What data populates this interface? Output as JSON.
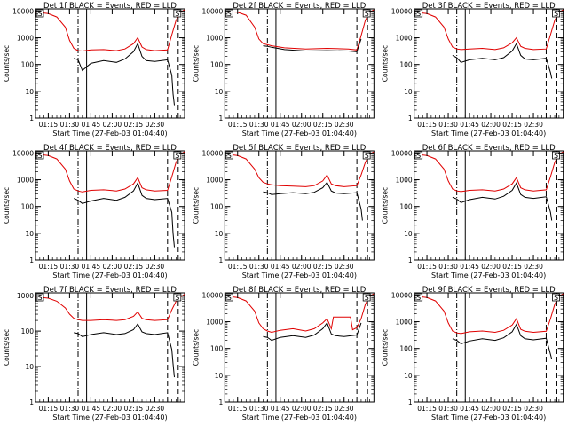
{
  "figure": {
    "xlabel": "Start Time (27-Feb-03 01:04:40)",
    "ylabel": "Counts/sec",
    "xticks": [
      "01:15",
      "01:30",
      "01:45",
      "02:00",
      "02:15",
      "02:30"
    ],
    "yticks": [
      "1",
      "10",
      "100",
      "1000",
      "10000"
    ]
  },
  "chart_data": [
    {
      "type": "line",
      "title": "Det 1f BLACK = Events, RED = LLD",
      "marker_left": "S",
      "marker_right": "S",
      "xlabel": "Start Time (27-Feb-03 01:04:40)",
      "ylabel": "Counts/sec",
      "yscale": "log",
      "ylim": [
        1,
        12000
      ],
      "xlim": [
        1,
        36
      ],
      "vlines": [
        {
          "x": 11,
          "style": "dashdot"
        },
        {
          "x": 13,
          "style": "solid"
        },
        {
          "x": 32,
          "style": "dashed"
        },
        {
          "x": 34.5,
          "style": "dashed"
        }
      ],
      "series": [
        {
          "name": "LLD",
          "color": "red",
          "x": [
            1,
            2,
            4,
            6,
            8,
            9,
            10,
            11,
            12,
            14,
            17,
            20,
            22,
            24,
            25,
            26,
            27,
            29,
            32,
            33,
            34,
            35,
            36
          ],
          "values": [
            9000,
            8800,
            8000,
            6000,
            2500,
            800,
            400,
            330,
            320,
            350,
            360,
            330,
            380,
            600,
            1000,
            450,
            360,
            330,
            350,
            1300,
            4500,
            9000,
            11000
          ]
        },
        {
          "name": "Events",
          "color": "black",
          "x": [
            10,
            11,
            12,
            14,
            17,
            20,
            22,
            24,
            25,
            26,
            27,
            29,
            32,
            33,
            33.3,
            33.6
          ],
          "values": [
            170,
            150,
            60,
            110,
            140,
            120,
            160,
            300,
            600,
            200,
            140,
            130,
            150,
            40,
            8,
            3
          ]
        }
      ]
    },
    {
      "type": "line",
      "title": "Det 2f BLACK = Events, RED = LLD",
      "marker_left": "S",
      "marker_right": "S",
      "xlabel": "Start Time (27-Feb-03 01:04:40)",
      "ylabel": "Counts/sec",
      "yscale": "log",
      "ylim": [
        1,
        12000
      ],
      "xlim": [
        1,
        36
      ],
      "vlines": [
        {
          "x": 11,
          "style": "dashdot"
        },
        {
          "x": 13,
          "style": "solid"
        },
        {
          "x": 32,
          "style": "dashed"
        },
        {
          "x": 34.5,
          "style": "dashed"
        }
      ],
      "series": [
        {
          "name": "LLD",
          "color": "red",
          "x": [
            1,
            2,
            4,
            6,
            8,
            9,
            10,
            11,
            12,
            15,
            20,
            25,
            30,
            32,
            33,
            34,
            35,
            36
          ],
          "values": [
            9500,
            9500,
            9000,
            7000,
            2500,
            900,
            600,
            550,
            500,
            420,
            380,
            400,
            380,
            350,
            1200,
            4500,
            9000,
            11000
          ]
        },
        {
          "name": "Events",
          "color": "black",
          "x": [
            10,
            11,
            12,
            15,
            20,
            25,
            30,
            32,
            33
          ],
          "values": [
            500,
            480,
            440,
            360,
            320,
            330,
            320,
            300,
            900
          ]
        }
      ]
    },
    {
      "type": "line",
      "title": "Det 3f BLACK = Events, RED = LLD",
      "marker_left": "S",
      "marker_right": "S",
      "xlabel": "Start Time (27-Feb-03 01:04:40)",
      "ylabel": "Counts/sec",
      "yscale": "log",
      "ylim": [
        1,
        12000
      ],
      "xlim": [
        1,
        36
      ],
      "vlines": [
        {
          "x": 11,
          "style": "dashdot"
        },
        {
          "x": 13,
          "style": "solid"
        },
        {
          "x": 32,
          "style": "dashed"
        },
        {
          "x": 34.5,
          "style": "dashed"
        }
      ],
      "series": [
        {
          "name": "LLD",
          "color": "red",
          "x": [
            1,
            2,
            4,
            6,
            8,
            9,
            10,
            11,
            12,
            14,
            17,
            20,
            22,
            24,
            25,
            26,
            27,
            29,
            32,
            33,
            34,
            35,
            36
          ],
          "values": [
            9000,
            8800,
            8000,
            6000,
            2500,
            900,
            450,
            380,
            360,
            380,
            400,
            360,
            420,
            650,
            1000,
            480,
            400,
            360,
            380,
            1300,
            4500,
            9000,
            11000
          ]
        },
        {
          "name": "Events",
          "color": "black",
          "x": [
            10,
            11,
            12,
            14,
            17,
            20,
            22,
            24,
            25,
            26,
            27,
            29,
            32,
            33,
            33.3
          ],
          "values": [
            220,
            180,
            120,
            150,
            170,
            150,
            180,
            320,
            600,
            220,
            160,
            150,
            170,
            50,
            30
          ]
        }
      ]
    },
    {
      "type": "line",
      "title": "Det 4f BLACK = Events, RED = LLD",
      "marker_left": "S",
      "marker_right": "S",
      "xlabel": "Start Time (27-Feb-03 01:04:40)",
      "ylabel": "Counts/sec",
      "yscale": "log",
      "ylim": [
        1,
        12000
      ],
      "xlim": [
        1,
        36
      ],
      "vlines": [
        {
          "x": 11,
          "style": "dashdot"
        },
        {
          "x": 13,
          "style": "solid"
        },
        {
          "x": 32,
          "style": "dashed"
        },
        {
          "x": 34.5,
          "style": "dashed"
        }
      ],
      "series": [
        {
          "name": "LLD",
          "color": "red",
          "x": [
            1,
            2,
            4,
            6,
            8,
            9,
            10,
            11,
            12,
            14,
            17,
            20,
            22,
            24,
            25,
            26,
            27,
            29,
            32,
            33,
            34,
            35,
            36
          ],
          "values": [
            9000,
            8800,
            8000,
            6000,
            2500,
            900,
            450,
            380,
            350,
            400,
            420,
            380,
            450,
            700,
            1200,
            500,
            420,
            380,
            400,
            1300,
            4500,
            9000,
            11000
          ]
        },
        {
          "name": "Events",
          "color": "black",
          "x": [
            10,
            11,
            12,
            14,
            17,
            20,
            22,
            24,
            25,
            26,
            27,
            29,
            32,
            33,
            33.3,
            33.6
          ],
          "values": [
            200,
            170,
            130,
            160,
            200,
            170,
            220,
            380,
            750,
            260,
            200,
            180,
            200,
            60,
            10,
            3
          ]
        }
      ]
    },
    {
      "type": "line",
      "title": "Det 5f BLACK = Events, RED = LLD",
      "marker_left": "S",
      "marker_right": "S",
      "xlabel": "Start Time (27-Feb-03 01:04:40)",
      "ylabel": "Counts/sec",
      "yscale": "log",
      "ylim": [
        1,
        12000
      ],
      "xlim": [
        1,
        36
      ],
      "vlines": [
        {
          "x": 11,
          "style": "dashdot"
        },
        {
          "x": 13,
          "style": "solid"
        },
        {
          "x": 32,
          "style": "dashed"
        },
        {
          "x": 34.5,
          "style": "dashed"
        }
      ],
      "series": [
        {
          "name": "LLD",
          "color": "red",
          "x": [
            1,
            2,
            4,
            6,
            8,
            9,
            10,
            11,
            12,
            14,
            17,
            20,
            22,
            24,
            25,
            26,
            27,
            29,
            32,
            33,
            34,
            35,
            36
          ],
          "values": [
            9000,
            8800,
            8000,
            6000,
            2500,
            1200,
            800,
            700,
            650,
            600,
            580,
            550,
            600,
            900,
            1500,
            700,
            600,
            550,
            600,
            1500,
            4500,
            9000,
            11000
          ]
        },
        {
          "name": "Events",
          "color": "black",
          "x": [
            10,
            11,
            12,
            14,
            17,
            20,
            22,
            24,
            25,
            26,
            27,
            29,
            32,
            33,
            33.3
          ],
          "values": [
            350,
            330,
            280,
            300,
            330,
            300,
            340,
            500,
            800,
            380,
            320,
            300,
            330,
            80,
            30
          ]
        }
      ]
    },
    {
      "type": "line",
      "title": "Det 6f BLACK = Events, RED = LLD",
      "marker_left": "S",
      "marker_right": "S",
      "xlabel": "Start Time (27-Feb-03 01:04:40)",
      "ylabel": "Counts/sec",
      "yscale": "log",
      "ylim": [
        1,
        12000
      ],
      "xlim": [
        1,
        36
      ],
      "vlines": [
        {
          "x": 11,
          "style": "dashdot"
        },
        {
          "x": 13,
          "style": "solid"
        },
        {
          "x": 32,
          "style": "dashed"
        },
        {
          "x": 34.5,
          "style": "dashed"
        }
      ],
      "series": [
        {
          "name": "LLD",
          "color": "red",
          "x": [
            1,
            2,
            4,
            6,
            8,
            9,
            10,
            11,
            12,
            14,
            17,
            20,
            22,
            24,
            25,
            26,
            27,
            29,
            32,
            33,
            34,
            35,
            36
          ],
          "values": [
            9000,
            8800,
            8000,
            6000,
            2500,
            900,
            450,
            380,
            360,
            400,
            420,
            380,
            450,
            700,
            1200,
            500,
            420,
            380,
            420,
            1300,
            4500,
            9000,
            11000
          ]
        },
        {
          "name": "Events",
          "color": "black",
          "x": [
            10,
            11,
            12,
            14,
            17,
            20,
            22,
            24,
            25,
            26,
            27,
            29,
            32,
            33,
            33.3
          ],
          "values": [
            220,
            190,
            140,
            180,
            220,
            190,
            240,
            400,
            750,
            280,
            220,
            200,
            230,
            60,
            30
          ]
        }
      ]
    },
    {
      "type": "line",
      "title": "Det 7f BLACK = Events, RED = LLD",
      "marker_left": "S",
      "marker_right": "S",
      "xlabel": "Start Time (27-Feb-03 01:04:40)",
      "ylabel": "Counts/sec",
      "yscale": "log",
      "ylim": [
        1,
        1200
      ],
      "xlim": [
        1,
        36
      ],
      "vlines": [
        {
          "x": 11,
          "style": "dashdot"
        },
        {
          "x": 13,
          "style": "solid"
        },
        {
          "x": 32,
          "style": "dashed"
        },
        {
          "x": 34.5,
          "style": "dashed"
        }
      ],
      "series": [
        {
          "name": "LLD",
          "color": "red",
          "x": [
            1,
            2,
            4,
            6,
            8,
            9,
            10,
            11,
            12,
            14,
            17,
            20,
            22,
            24,
            25,
            26,
            27,
            29,
            32,
            33,
            34,
            35,
            36
          ],
          "values": [
            900,
            900,
            850,
            700,
            450,
            300,
            230,
            210,
            200,
            200,
            210,
            200,
            210,
            260,
            350,
            230,
            210,
            200,
            210,
            400,
            700,
            900,
            1100
          ]
        },
        {
          "name": "Events",
          "color": "black",
          "x": [
            10,
            11,
            12,
            14,
            17,
            20,
            22,
            24,
            25,
            26,
            27,
            29,
            32,
            33,
            33.3,
            33.6
          ],
          "values": [
            90,
            85,
            70,
            80,
            90,
            80,
            85,
            110,
            160,
            95,
            85,
            80,
            90,
            30,
            12,
            5
          ]
        }
      ]
    },
    {
      "type": "line",
      "title": "Det 8f BLACK = Events, RED = LLD",
      "marker_left": "S",
      "marker_right": "S",
      "xlabel": "Start Time (27-Feb-03 01:04:40)",
      "ylabel": "Counts/sec",
      "yscale": "log",
      "ylim": [
        1,
        12000
      ],
      "xlim": [
        1,
        36
      ],
      "vlines": [
        {
          "x": 11,
          "style": "dashdot"
        },
        {
          "x": 13,
          "style": "solid"
        },
        {
          "x": 32,
          "style": "dashed"
        },
        {
          "x": 34.5,
          "style": "dashed"
        }
      ],
      "series": [
        {
          "name": "LLD",
          "color": "red",
          "x": [
            1,
            2,
            4,
            6,
            8,
            9,
            10,
            11,
            12,
            14,
            17,
            20,
            22,
            24,
            25,
            26,
            26.5,
            30.5,
            31,
            32,
            33,
            34,
            35,
            36
          ],
          "values": [
            9000,
            8800,
            8000,
            6000,
            2500,
            900,
            550,
            450,
            400,
            480,
            550,
            450,
            550,
            900,
            1300,
            550,
            1500,
            1500,
            500,
            600,
            1300,
            4500,
            9000,
            11000
          ]
        },
        {
          "name": "Events",
          "color": "black",
          "x": [
            10,
            11,
            12,
            14,
            17,
            20,
            22,
            24,
            25,
            26,
            27,
            29,
            32,
            33
          ],
          "values": [
            280,
            260,
            200,
            260,
            300,
            260,
            320,
            550,
            900,
            350,
            300,
            280,
            320,
            900
          ]
        }
      ]
    },
    {
      "type": "line",
      "title": "Det 9f BLACK = Events, RED = LLD",
      "marker_left": "S",
      "marker_right": "S",
      "xlabel": "Start Time (27-Feb-03 01:04:40)",
      "ylabel": "Counts/sec",
      "yscale": "log",
      "ylim": [
        1,
        12000
      ],
      "xlim": [
        1,
        36
      ],
      "vlines": [
        {
          "x": 11,
          "style": "dashdot"
        },
        {
          "x": 13,
          "style": "solid"
        },
        {
          "x": 32,
          "style": "dashed"
        },
        {
          "x": 34.5,
          "style": "dashed"
        }
      ],
      "series": [
        {
          "name": "LLD",
          "color": "red",
          "x": [
            1,
            2,
            4,
            6,
            8,
            9,
            10,
            11,
            12,
            14,
            17,
            20,
            22,
            24,
            25,
            26,
            27,
            29,
            32,
            33,
            34,
            35,
            36
          ],
          "values": [
            9000,
            8800,
            8000,
            6000,
            2500,
            900,
            450,
            380,
            360,
            420,
            450,
            400,
            480,
            750,
            1300,
            520,
            440,
            400,
            440,
            1300,
            4500,
            9000,
            11000
          ]
        },
        {
          "name": "Events",
          "color": "black",
          "x": [
            10,
            11,
            12,
            14,
            17,
            20,
            22,
            24,
            25,
            26,
            27,
            29,
            32,
            33,
            33.3
          ],
          "values": [
            230,
            200,
            150,
            190,
            230,
            200,
            250,
            420,
            800,
            300,
            230,
            210,
            240,
            60,
            40
          ]
        }
      ]
    }
  ]
}
